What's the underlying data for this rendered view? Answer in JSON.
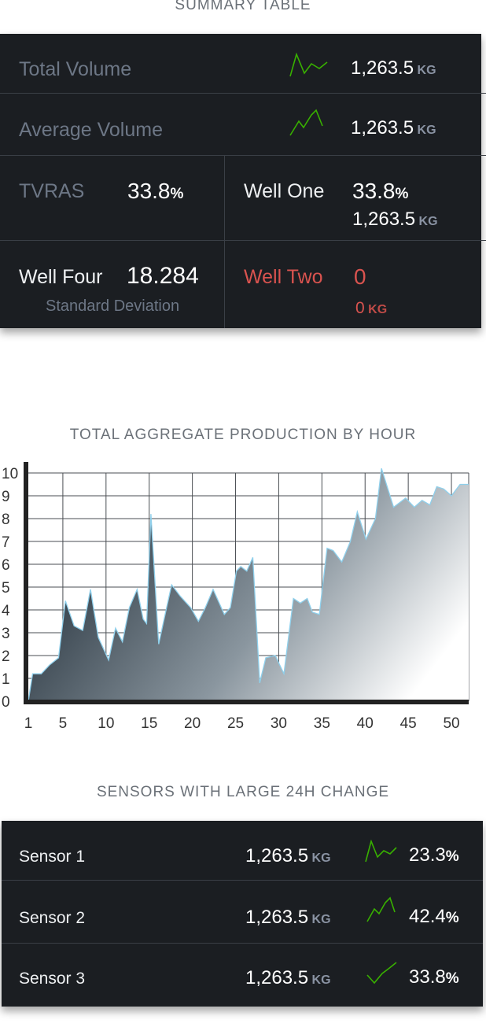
{
  "summary": {
    "title": "SUMMARY TABLE",
    "total_volume": {
      "label": "Total Volume",
      "value": "1,263.5",
      "unit": "KG"
    },
    "average_volume": {
      "label": "Average Volume",
      "value": "1,263.5",
      "unit": "KG"
    },
    "tvras": {
      "label": "TVRAS",
      "value": "33.8",
      "unit": "%"
    },
    "well_one": {
      "label": "Well One",
      "pct_value": "33.8",
      "pct_unit": "%",
      "kg_value": "1,263.5",
      "kg_unit": "KG"
    },
    "well_four": {
      "label": "Well Four",
      "value": "18.284",
      "sublabel": "Standard Deviation"
    },
    "well_two": {
      "label": "Well Two",
      "value": "0",
      "kg_value": "0",
      "kg_unit": "KG"
    }
  },
  "colors": {
    "panel": "#1b1e22",
    "sparkline": "#38b000",
    "alert": "#d9534f",
    "muted": "#6d7786"
  },
  "icons": {
    "sparkline": "sparkline-icon"
  },
  "chart_data": {
    "type": "area",
    "title": "TOTAL AGGREGATE PRODUCTION BY HOUR",
    "xlabel": "",
    "ylabel": "",
    "xlim": [
      1,
      52
    ],
    "ylim": [
      0,
      10
    ],
    "x_ticks": [
      1,
      5,
      10,
      15,
      20,
      25,
      30,
      35,
      40,
      45,
      50
    ],
    "y_ticks": [
      0,
      1,
      2,
      3,
      4,
      5,
      6,
      7,
      8,
      9,
      10
    ],
    "grid": true,
    "x": [
      1,
      1.5,
      2.5,
      3.5,
      4.5,
      5.3,
      6.3,
      7.3,
      8.2,
      9.1,
      10.3,
      11.1,
      11.9,
      12.7,
      13.6,
      14.3,
      14.7,
      15.2,
      16.1,
      16.9,
      17.6,
      18.6,
      19.8,
      20.7,
      21.5,
      22.4,
      23.7,
      24.4,
      25.1,
      25.6,
      26.3,
      27.0,
      27.8,
      28.5,
      29.6,
      30.6,
      31.7,
      32.5,
      33.3,
      33.9,
      34.7,
      35.6,
      36.3,
      37.3,
      38.3,
      39.1,
      40.1,
      41.2,
      41.9,
      43.3,
      44.7,
      45.7,
      46.6,
      47.5,
      48.3,
      49.1,
      50.0,
      51.0,
      52.0
    ],
    "values": [
      0,
      1.2,
      1.2,
      1.6,
      1.9,
      4.4,
      3.3,
      3.1,
      4.9,
      2.8,
      1.8,
      3.2,
      2.6,
      4.1,
      4.9,
      3.6,
      3.4,
      8.2,
      2.5,
      3.9,
      5.1,
      4.6,
      4.1,
      3.5,
      4.1,
      4.9,
      3.8,
      4.1,
      5.7,
      5.9,
      5.7,
      6.3,
      0.8,
      1.9,
      2.0,
      1.2,
      4.5,
      4.3,
      4.5,
      3.9,
      3.8,
      6.7,
      6.6,
      6.1,
      7.0,
      8.3,
      7.1,
      8.0,
      10.2,
      8.5,
      8.9,
      8.5,
      8.8,
      8.6,
      9.4,
      9.3,
      9.0,
      9.5,
      9.5
    ]
  },
  "sensors": {
    "title": "SENSORS WITH LARGE 24H CHANGE",
    "rows": [
      {
        "name": "Sensor 1",
        "value": "1,263.5",
        "unit": "KG",
        "pct": "23.3",
        "pct_unit": "%"
      },
      {
        "name": "Sensor 2",
        "value": "1,263.5",
        "unit": "KG",
        "pct": "42.4",
        "pct_unit": "%"
      },
      {
        "name": "Sensor 3",
        "value": "1,263.5",
        "unit": "KG",
        "pct": "33.8",
        "pct_unit": "%"
      }
    ]
  }
}
